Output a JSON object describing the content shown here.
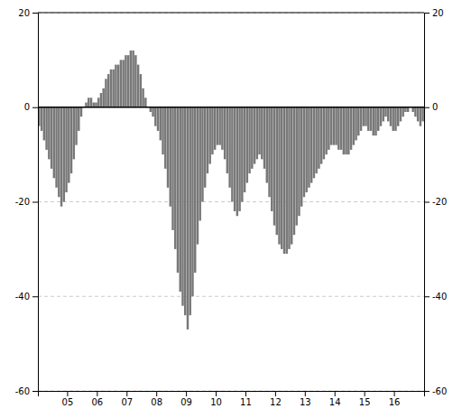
{
  "chart_data": {
    "type": "bar",
    "color": "#787878",
    "grid": true,
    "ylim": [
      -60,
      20
    ],
    "yticks": [
      -60,
      -40,
      -20,
      0,
      20
    ],
    "y2lim": [
      -60,
      20
    ],
    "y2ticks": [
      -60,
      -40,
      -20,
      0,
      20
    ],
    "categories": [
      null,
      null,
      null,
      null,
      null,
      null,
      null,
      null,
      null,
      null,
      null,
      null,
      "05",
      null,
      null,
      null,
      null,
      null,
      null,
      null,
      null,
      null,
      null,
      null,
      "06",
      null,
      null,
      null,
      null,
      null,
      null,
      null,
      null,
      null,
      null,
      null,
      "07",
      null,
      null,
      null,
      null,
      null,
      null,
      null,
      null,
      null,
      null,
      null,
      "08",
      null,
      null,
      null,
      null,
      null,
      null,
      null,
      null,
      null,
      null,
      null,
      "09",
      null,
      null,
      null,
      null,
      null,
      null,
      null,
      null,
      null,
      null,
      null,
      "10",
      null,
      null,
      null,
      null,
      null,
      null,
      null,
      null,
      null,
      null,
      null,
      "11",
      null,
      null,
      null,
      null,
      null,
      null,
      null,
      null,
      null,
      null,
      null,
      "12",
      null,
      null,
      null,
      null,
      null,
      null,
      null,
      null,
      null,
      null,
      null,
      "13",
      null,
      null,
      null,
      null,
      null,
      null,
      null,
      null,
      null,
      null,
      null,
      "14",
      null,
      null,
      null,
      null,
      null,
      null,
      null,
      null,
      null,
      null,
      null,
      "15",
      null,
      null,
      null,
      null,
      null,
      null,
      null,
      null,
      null,
      null,
      null,
      "16",
      null,
      null,
      null,
      null,
      null,
      null,
      null,
      null,
      null,
      null,
      null
    ],
    "values": [
      -4,
      -5,
      -7,
      -9,
      -11,
      -13,
      -15,
      -17,
      -19,
      -21,
      -20,
      -18,
      -16,
      -14,
      -11,
      -8,
      -5,
      -2,
      0,
      1,
      2,
      2,
      1,
      1,
      2,
      3,
      4,
      6,
      7,
      8,
      8,
      9,
      9,
      10,
      10,
      11,
      11,
      12,
      12,
      11,
      9,
      7,
      4,
      2,
      0,
      -1,
      -2,
      -4,
      -5,
      -7,
      -10,
      -13,
      -17,
      -21,
      -26,
      -30,
      -35,
      -39,
      -42,
      -44,
      -47,
      -44,
      -40,
      -35,
      -29,
      -24,
      -20,
      -17,
      -14,
      -12,
      -10,
      -9,
      -8,
      -8,
      -9,
      -11,
      -14,
      -17,
      -20,
      -22,
      -23,
      -22,
      -20,
      -18,
      -16,
      -14,
      -13,
      -12,
      -11,
      -10,
      -11,
      -13,
      -16,
      -19,
      -22,
      -25,
      -27,
      -29,
      -30,
      -31,
      -31,
      -30,
      -29,
      -27,
      -25,
      -23,
      -21,
      -19,
      -18,
      -17,
      -16,
      -15,
      -14,
      -13,
      -12,
      -11,
      -10,
      -9,
      -8,
      -8,
      -8,
      -9,
      -9,
      -10,
      -10,
      -10,
      -9,
      -8,
      -7,
      -6,
      -5,
      -4,
      -4,
      -5,
      -5,
      -6,
      -6,
      -5,
      -4,
      -3,
      -2,
      -3,
      -4,
      -5,
      -5,
      -4,
      -3,
      -2,
      -1,
      -1,
      0,
      -1,
      -2,
      -3,
      -4,
      -3
    ]
  }
}
